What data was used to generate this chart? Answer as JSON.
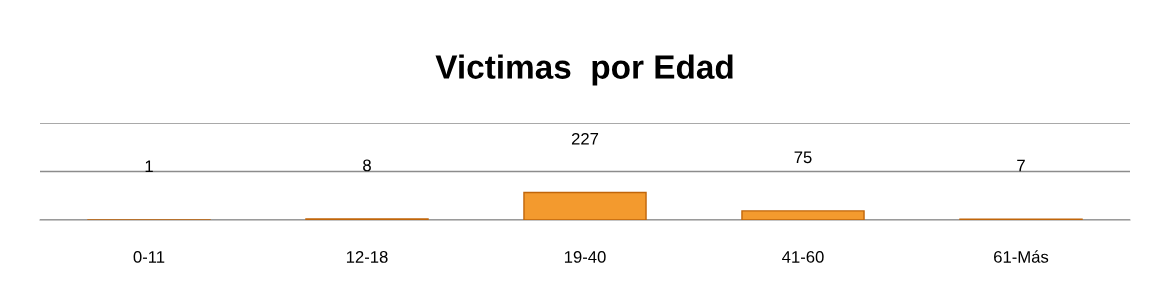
{
  "chart_data": {
    "type": "bar",
    "title": "Victimas  por Edad",
    "categories": [
      "0-11",
      "12-18",
      "19-40",
      "41-60",
      "61-Más"
    ],
    "values": [
      1,
      8,
      227,
      75,
      7
    ],
    "color": "#f39a2e",
    "data_labels": true,
    "ylim": [
      0,
      800
    ],
    "yticks": [
      {
        "value": 0,
        "label": null
      },
      {
        "value": 400,
        "label": null
      },
      {
        "value": 800,
        "label": null
      }
    ],
    "grid": "y",
    "tick_labels": "x"
  }
}
